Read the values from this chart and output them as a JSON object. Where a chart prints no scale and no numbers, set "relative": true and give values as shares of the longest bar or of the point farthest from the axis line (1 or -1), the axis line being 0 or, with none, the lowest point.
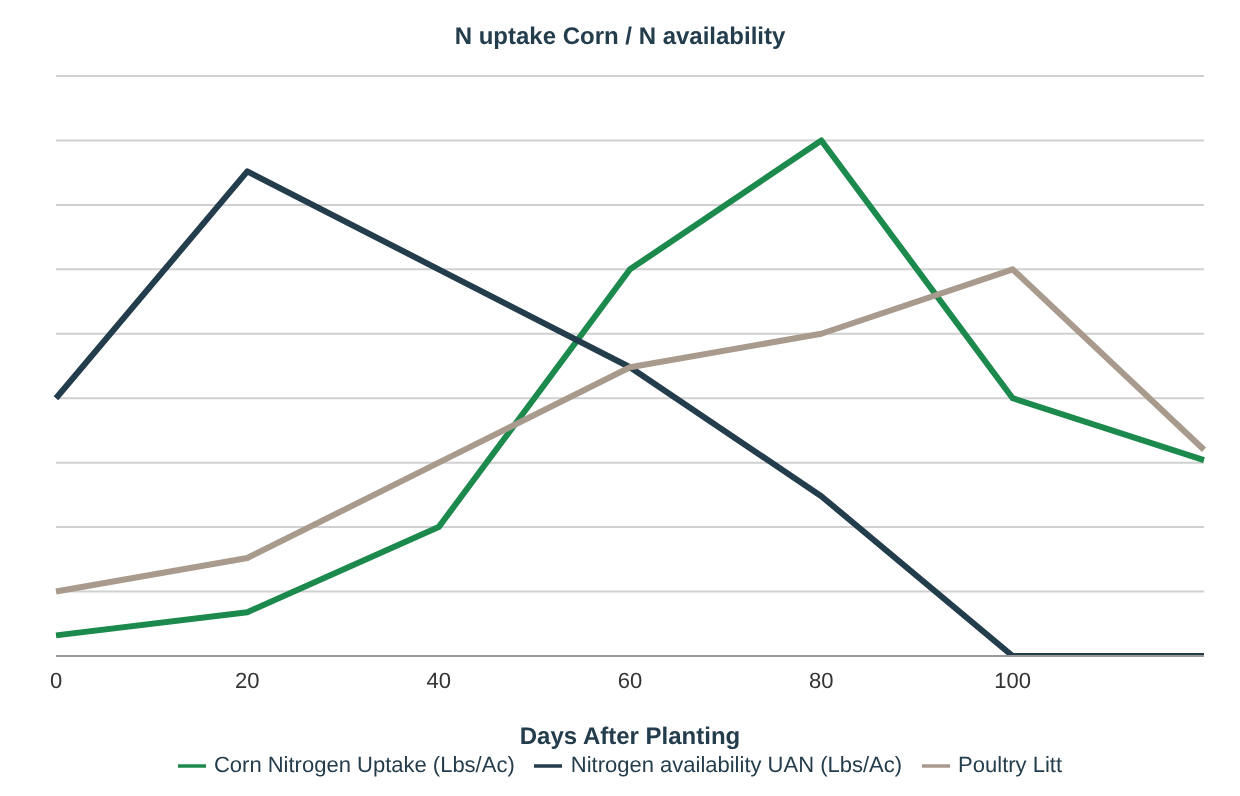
{
  "chart_data": {
    "type": "line",
    "title": "N uptake Corn / N availability",
    "xlabel": "Days After Planting",
    "categories": [
      "0",
      "20",
      "40",
      "60",
      "80",
      "100",
      null
    ],
    "relative": true,
    "grid": "y",
    "legend": "bottom",
    "marker": "none",
    "line_style": "solid",
    "series": [
      {
        "name": "Corn Nitrogen Uptake (Lbs/Ac)",
        "color": "#1b8a4c",
        "values": [
          0.04,
          0.085,
          0.25,
          0.75,
          1,
          0.5,
          0.38
        ]
      },
      {
        "name": "Nitrogen availability UAN (Lbs/Ac)",
        "color": "#233d4d",
        "values": [
          0.5,
          0.94,
          0.75,
          0.56,
          0.31,
          0,
          0
        ]
      },
      {
        "name": "Poultry Litt",
        "color": "#a89a8c",
        "values": [
          0.125,
          0.19,
          0.375,
          0.56,
          0.625,
          0.75,
          0.4
        ]
      }
    ]
  }
}
